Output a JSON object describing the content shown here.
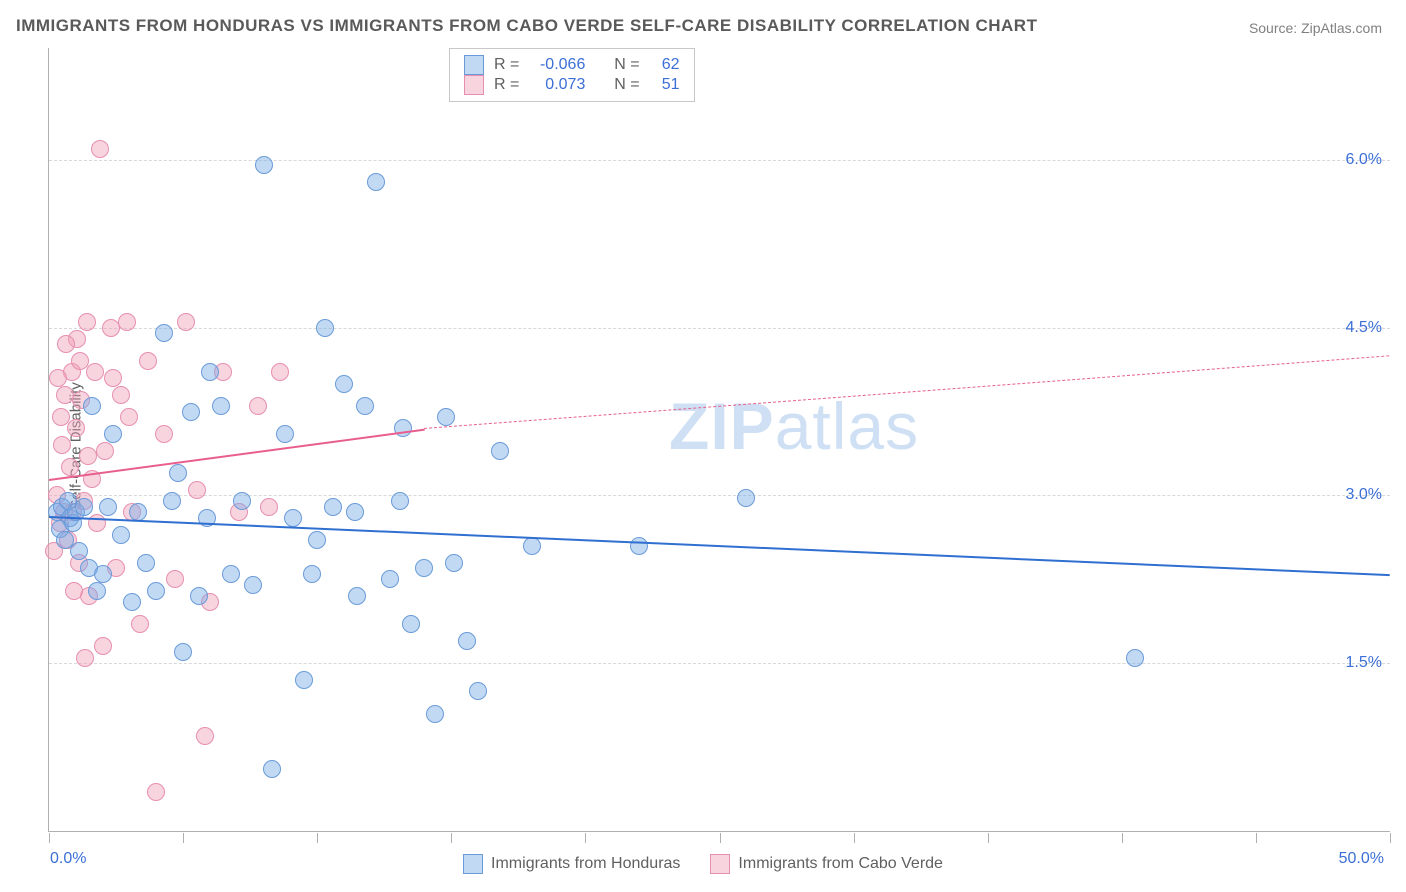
{
  "title": "IMMIGRANTS FROM HONDURAS VS IMMIGRANTS FROM CABO VERDE SELF-CARE DISABILITY CORRELATION CHART",
  "source_prefix": "Source: ",
  "source_link": "ZipAtlas.com",
  "ylabel": "Self-Care Disability",
  "watermark_bold": "ZIP",
  "watermark_rest": "atlas",
  "colors": {
    "series_a_fill": "rgba(120,170,230,0.45)",
    "series_a_stroke": "#6a9bd8",
    "series_a_line": "#2f6fd0",
    "series_b_fill": "rgba(240,160,185,0.45)",
    "series_b_stroke": "#e78fb0",
    "series_b_line": "#e85f8f",
    "axis_text": "#3b6fd6",
    "grid": "#d8d8d8"
  },
  "axes": {
    "xlim": [
      0,
      50
    ],
    "ylim": [
      0,
      7
    ],
    "x_labels": {
      "min": "0.0%",
      "max": "50.0%"
    },
    "y_ticks": [
      {
        "v": 1.5,
        "label": "1.5%"
      },
      {
        "v": 3.0,
        "label": "3.0%"
      },
      {
        "v": 4.5,
        "label": "4.5%"
      },
      {
        "v": 6.0,
        "label": "6.0%"
      }
    ],
    "x_tick_values": [
      0,
      5,
      10,
      15,
      20,
      25,
      30,
      35,
      40,
      45,
      50
    ]
  },
  "series_a": {
    "name": "Immigrants from Honduras",
    "R": "-0.066",
    "N": "62",
    "trend": {
      "x1": 0,
      "y1": 2.82,
      "x2": 50,
      "y2": 2.3
    },
    "points": [
      [
        0.3,
        2.85
      ],
      [
        0.4,
        2.7
      ],
      [
        0.5,
        2.9
      ],
      [
        0.6,
        2.6
      ],
      [
        0.7,
        2.95
      ],
      [
        0.8,
        2.8
      ],
      [
        0.9,
        2.75
      ],
      [
        1.0,
        2.85
      ],
      [
        1.1,
        2.5
      ],
      [
        1.3,
        2.9
      ],
      [
        1.5,
        2.35
      ],
      [
        1.6,
        3.8
      ],
      [
        1.8,
        2.15
      ],
      [
        2.0,
        2.3
      ],
      [
        2.2,
        2.9
      ],
      [
        2.4,
        3.55
      ],
      [
        2.7,
        2.65
      ],
      [
        3.1,
        2.05
      ],
      [
        3.3,
        2.85
      ],
      [
        3.6,
        2.4
      ],
      [
        4.0,
        2.15
      ],
      [
        4.3,
        4.45
      ],
      [
        4.6,
        2.95
      ],
      [
        5.0,
        1.6
      ],
      [
        5.3,
        3.75
      ],
      [
        5.6,
        2.1
      ],
      [
        5.9,
        2.8
      ],
      [
        6.4,
        3.8
      ],
      [
        6.8,
        2.3
      ],
      [
        7.2,
        2.95
      ],
      [
        7.6,
        2.2
      ],
      [
        8.0,
        5.95
      ],
      [
        8.3,
        0.55
      ],
      [
        8.8,
        3.55
      ],
      [
        9.1,
        2.8
      ],
      [
        9.5,
        1.35
      ],
      [
        9.8,
        2.3
      ],
      [
        10.3,
        4.5
      ],
      [
        10.6,
        2.9
      ],
      [
        11.0,
        4.0
      ],
      [
        11.4,
        2.85
      ],
      [
        11.8,
        3.8
      ],
      [
        12.2,
        5.8
      ],
      [
        12.7,
        2.25
      ],
      [
        13.1,
        2.95
      ],
      [
        13.5,
        1.85
      ],
      [
        14.0,
        2.35
      ],
      [
        14.4,
        1.05
      ],
      [
        15.1,
        2.4
      ],
      [
        16.0,
        1.25
      ],
      [
        16.8,
        3.4
      ],
      [
        18.0,
        2.55
      ],
      [
        14.8,
        3.7
      ],
      [
        13.2,
        3.6
      ],
      [
        15.6,
        1.7
      ],
      [
        11.5,
        2.1
      ],
      [
        10.0,
        2.6
      ],
      [
        22.0,
        2.55
      ],
      [
        26.0,
        2.98
      ],
      [
        40.5,
        1.55
      ],
      [
        6.0,
        4.1
      ],
      [
        4.8,
        3.2
      ]
    ]
  },
  "series_b": {
    "name": "Immigrants from Cabo Verde",
    "R": "0.073",
    "N": "51",
    "trend_solid": {
      "x1": 0,
      "y1": 3.15,
      "x2": 14,
      "y2": 3.6
    },
    "trend_dashed": {
      "x1": 14,
      "y1": 3.6,
      "x2": 50,
      "y2": 4.25
    },
    "points": [
      [
        0.2,
        2.5
      ],
      [
        0.3,
        3.0
      ],
      [
        0.4,
        2.75
      ],
      [
        0.5,
        3.45
      ],
      [
        0.55,
        2.85
      ],
      [
        0.6,
        3.9
      ],
      [
        0.7,
        2.6
      ],
      [
        0.8,
        3.25
      ],
      [
        0.85,
        4.1
      ],
      [
        0.9,
        2.85
      ],
      [
        1.0,
        3.6
      ],
      [
        1.05,
        4.4
      ],
      [
        1.1,
        2.4
      ],
      [
        1.2,
        3.85
      ],
      [
        1.3,
        2.95
      ],
      [
        1.4,
        4.55
      ],
      [
        1.5,
        2.1
      ],
      [
        1.6,
        3.15
      ],
      [
        1.7,
        4.1
      ],
      [
        1.8,
        2.75
      ],
      [
        1.9,
        6.1
      ],
      [
        2.0,
        1.65
      ],
      [
        2.1,
        3.4
      ],
      [
        2.3,
        4.5
      ],
      [
        2.5,
        2.35
      ],
      [
        2.7,
        3.9
      ],
      [
        2.9,
        4.55
      ],
      [
        3.1,
        2.85
      ],
      [
        3.4,
        1.85
      ],
      [
        3.7,
        4.2
      ],
      [
        4.0,
        0.35
      ],
      [
        4.3,
        3.55
      ],
      [
        4.7,
        2.25
      ],
      [
        5.1,
        4.55
      ],
      [
        5.5,
        3.05
      ],
      [
        6.0,
        2.05
      ],
      [
        6.5,
        4.1
      ],
      [
        7.1,
        2.85
      ],
      [
        7.8,
        3.8
      ],
      [
        8.6,
        4.1
      ],
      [
        2.4,
        4.05
      ],
      [
        3.0,
        3.7
      ],
      [
        1.15,
        4.2
      ],
      [
        0.65,
        4.35
      ],
      [
        0.45,
        3.7
      ],
      [
        1.45,
        3.35
      ],
      [
        5.8,
        0.85
      ],
      [
        1.35,
        1.55
      ],
      [
        0.95,
        2.15
      ],
      [
        0.35,
        4.05
      ],
      [
        8.2,
        2.9
      ]
    ]
  },
  "legend_top_labels": {
    "r": "R =",
    "n": "N ="
  }
}
